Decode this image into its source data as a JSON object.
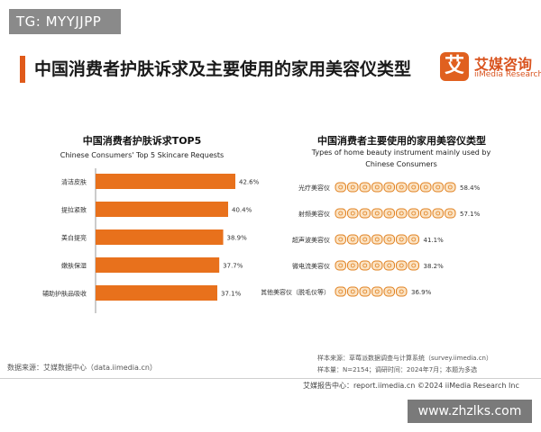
{
  "tag": "TG: MYYJJPP",
  "title": "中国消费者护肤诉求及主要使用的家用美容仪类型",
  "logo": {
    "mark": "艾",
    "name_cn": "艾媒咨询",
    "name_en": "iiMedia Research"
  },
  "colors": {
    "accent": "#e05a1a",
    "bar": "#e8711c",
    "icon_stroke": "#e0801f",
    "icon_fill": "#fbe3c4"
  },
  "chart_data": [
    {
      "type": "bar",
      "orientation": "horizontal",
      "title": "中国消费者护肤诉求TOP5",
      "subtitle": "Chinese Consumers' Top 5 Skincare Requests",
      "categories": [
        "清洁皮肤",
        "提拉紧致",
        "美白提亮",
        "嫩肤保湿",
        "辅助护肤品吸收"
      ],
      "values": [
        42.6,
        40.4,
        38.9,
        37.7,
        37.1
      ],
      "labels": [
        "42.6%",
        "40.4%",
        "38.9%",
        "37.7%",
        "37.1%"
      ]
    },
    {
      "type": "bar",
      "orientation": "horizontal",
      "style": "pictogram",
      "title": "中国消费者主要使用的家用美容仪类型",
      "subtitle": "Types of home beauty instrument mainly used by Chinese Consumers",
      "categories": [
        "光疗美容仪",
        "射频美容仪",
        "超声波美容仪",
        "微电流美容仪",
        "其他美容仪（脱毛仪等）"
      ],
      "values": [
        58.4,
        57.1,
        41.1,
        38.2,
        36.9
      ],
      "labels": [
        "58.4%",
        "57.1%",
        "41.1%",
        "38.2%",
        "36.9%"
      ]
    }
  ],
  "footer": {
    "source": "数据来源：艾媒数据中心（data.iimedia.cn）",
    "sample_source": "样本来源：草莓派数据调查与计算系统（survey.iimedia.cn）",
    "sample_size": "样本量：N=2154；调研时间：2024年7月；本题为多选",
    "report": "艾媒报告中心：report.iimedia.cn    ©2024  iiMedia Research  Inc"
  },
  "watermark": "www.zhzlks.com"
}
